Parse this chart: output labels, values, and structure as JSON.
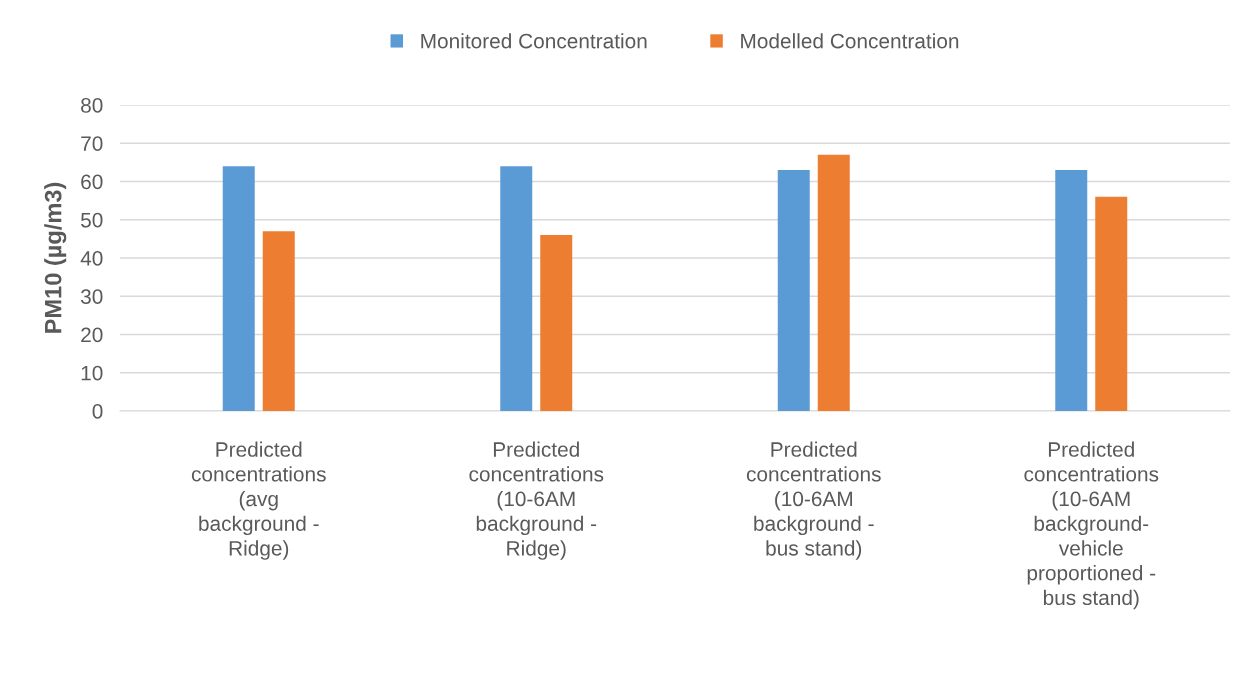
{
  "chart_data": {
    "type": "bar",
    "ylabel": "PM10 (µg/m3)",
    "categories": [
      "Predicted\nconcentrations\n(avg\nbackground -\nRidge)",
      "Predicted\nconcentrations\n(10-6AM\nbackground -\nRidge)",
      "Predicted\nconcentrations\n(10-6AM\nbackground -\nbus stand)",
      "Predicted\nconcentrations\n(10-6AM\nbackground-\nvehicle\nproportioned -\nbus stand)"
    ],
    "series": [
      {
        "name": "Monitored Concentration",
        "color": "#5b9bd5",
        "values": [
          64,
          64,
          63,
          63
        ]
      },
      {
        "name": "Modelled Concentration",
        "color": "#ed7d31",
        "values": [
          47,
          46,
          67,
          56
        ]
      }
    ],
    "ylim": [
      0,
      80
    ],
    "yticks": [
      0,
      10,
      20,
      30,
      40,
      50,
      60,
      70,
      80
    ],
    "grid": "y",
    "legend": "top"
  }
}
